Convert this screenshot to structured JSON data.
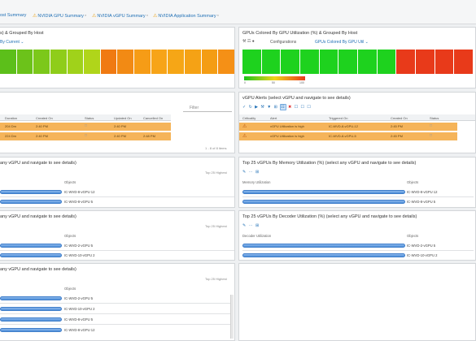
{
  "tabs": [
    {
      "label": "ost Summary",
      "warn": true
    },
    {
      "label": "NVIDIA GPU Summary",
      "warn": true
    },
    {
      "label": "NVIDIA vGPU Summary",
      "warn": true
    },
    {
      "label": "NVIDIA Application Summary",
      "warn": true
    }
  ],
  "heatmap_left": {
    "title": "s) & Grouped By Host",
    "subtitle": "By Current ⌄",
    "cells": [
      "#5cbf1a",
      "#6cc21a",
      "#7cc81a",
      "#8fcd1a",
      "#a0d21a",
      "#b0d51a",
      "#f07a12",
      "#f28a14",
      "#f69c16",
      "#f7a418",
      "#f6a616",
      "#f5a215",
      "#f49d14",
      "#f59016"
    ]
  },
  "heatmap_right": {
    "title": "GPUs Colored By GPU Utilization (%) & Grouped By Host",
    "config_label": "Configurations",
    "config_value": "GPUs Colored By GPU Util ⌄",
    "cells": [
      "#1ed21e",
      "#1ed21e",
      "#1ed21e",
      "#1ed21e",
      "#1ed21e",
      "#1ed21e",
      "#1ed21e",
      "#1ed21e",
      "#e83a1a",
      "#e83a1a",
      "#e83a1a",
      "#e83a1a"
    ],
    "legend_min": "0",
    "legend_mid": "50",
    "legend_max": "100"
  },
  "alerts_left": {
    "filter_placeholder": "Filter",
    "headers": [
      "Duration",
      "Created On",
      "Status",
      "Updated On",
      "Cancelled On"
    ],
    "rows": [
      {
        "duration": "204 Dm",
        "created": "2:40 PM",
        "updated": "2:40 PM",
        "cancelled": ""
      },
      {
        "duration": "224 Dm",
        "created": "2:40 PM",
        "updated": "2:40 PM",
        "cancelled": "2:48 PM"
      }
    ],
    "count": "1 - 8 of 8 items"
  },
  "alerts_right": {
    "title": "vGPU Alerts (select vGPU and navigate to see details)",
    "headers": [
      "Criticality",
      "Alert",
      "Triggered On",
      "Created On",
      "Status"
    ],
    "rows": [
      {
        "alert": "vGPU Utilization is high",
        "triggered": "IC-WVD-8-vGPU-12",
        "created": "2:45 PM"
      },
      {
        "alert": "vGPU Utilization is high",
        "triggered": "IC-WVD-8-vGPU-5",
        "created": "2:45 PM"
      }
    ]
  },
  "top_left_1": {
    "title": "any vGPU and navigate to see details)",
    "highest": "Top 25 Highest",
    "objects_header": "Objects",
    "objects": [
      "IC-WVD-8-vGPU 12",
      "IC-WVD-8-vGPU 5"
    ]
  },
  "top_right_1": {
    "title": "Top 25 vGPUs By Memory Utilization (%) (select any vGPU and navigate to see details)",
    "col_header": "Memory Utilization",
    "objects_header": "Objects",
    "objects": [
      "IC-WVD-8-vGPU 12",
      "IC-WVD-8-vGPU 5"
    ]
  },
  "top_left_2": {
    "title": "any vGPU and navigate to see details)",
    "highest": "Top 25 Highest",
    "objects_header": "Objects",
    "objects": [
      "IC-WVD-2-vGPU 5",
      "IC-WVD-10-vGPU 2"
    ]
  },
  "top_right_2": {
    "title": "Top 25 vGPUs By Decoder Utilization (%) (select any vGPU and navigate to see details)",
    "col_header": "Decoder Utilization",
    "objects_header": "Objects",
    "objects": [
      "IC-WVD-2-vGPU 5",
      "IC-WVD-10-vGPU 2"
    ]
  },
  "top_left_3": {
    "title": "any vGPU and navigate to see details)",
    "highest": "Top 25 Highest",
    "objects_header": "Objects",
    "objects": [
      "IC-WVD-2-vGPU 5",
      "IC-WVD-10-vGPU 2",
      "IC-WVD-8-vGPU 5",
      "IC-WVD-8-vGPU 12"
    ]
  }
}
